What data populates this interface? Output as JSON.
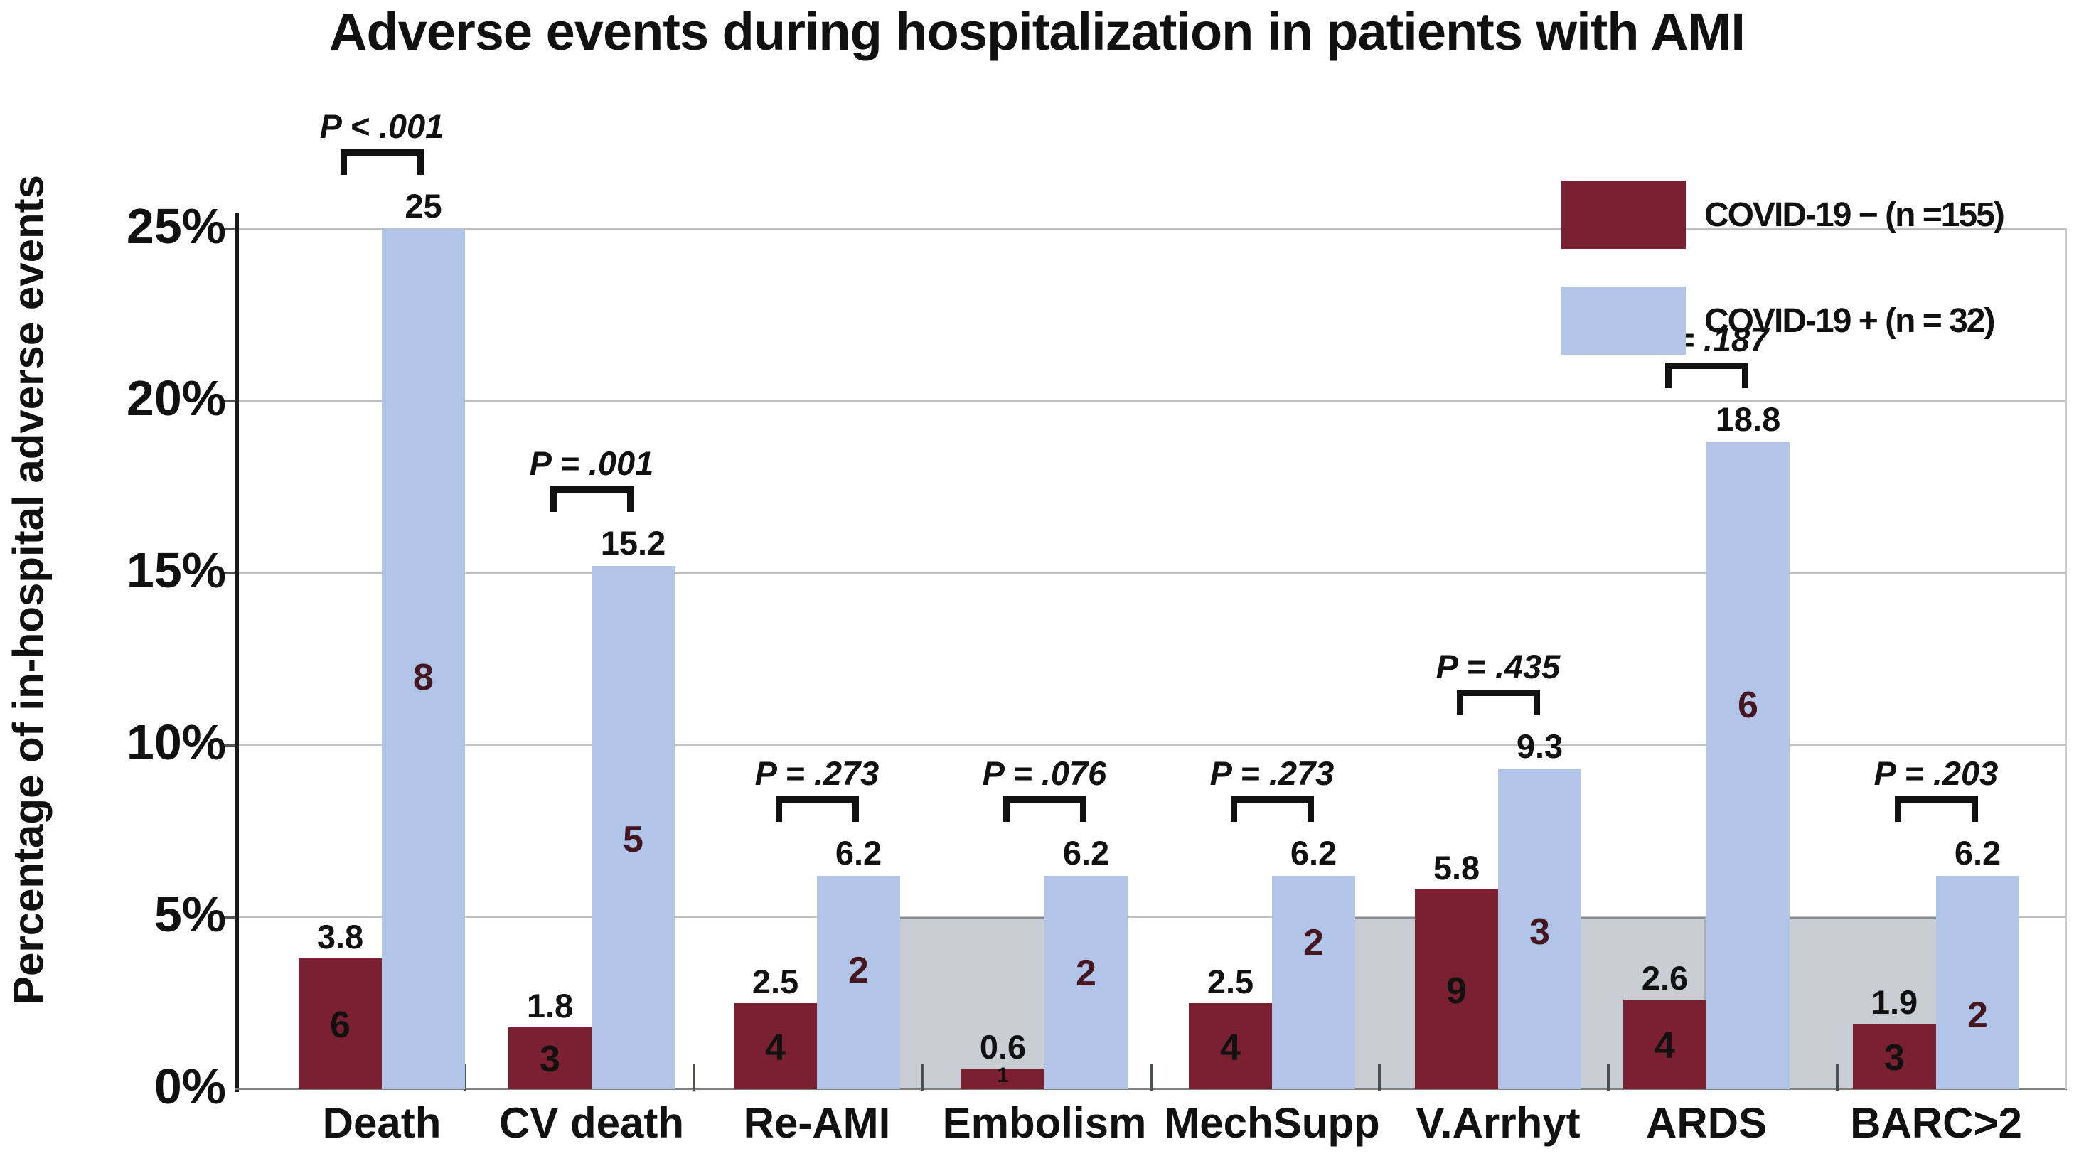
{
  "title": "Adverse events during hospitalization in patients with AMI",
  "y_axis": {
    "label": "Percentage of in-hospital adverse events",
    "ticks": [
      "0%",
      "5%",
      "10%",
      "15%",
      "20%",
      "25%"
    ]
  },
  "legend": [
    {
      "label": "COVID-19 − (n =155)",
      "color": "#7a2030"
    },
    {
      "label": "COVID-19 + (n = 32)",
      "color": "#b1c5e8"
    }
  ],
  "chart_data": {
    "type": "bar",
    "title": "Adverse events during hospitalization in patients with AMI",
    "xlabel": "",
    "ylabel": "Percentage of in-hospital adverse events",
    "ylim": [
      0,
      25
    ],
    "ytick_values": [
      0,
      5,
      10,
      15,
      20,
      25
    ],
    "ytick_labels": [
      "0%",
      "5%",
      "10%",
      "15%",
      "20%",
      "25%"
    ],
    "grid": true,
    "legend_position": "top-right",
    "categories": [
      "Death",
      "CV death",
      "Re-AMI",
      "Embolism",
      "MechSupp",
      "V.Arrhyt",
      "ARDS",
      "BARC>2"
    ],
    "series": [
      {
        "name": "COVID-19 − (n =155)",
        "color": "#7a2030",
        "values": [
          3.8,
          1.8,
          2.5,
          0.6,
          2.5,
          5.8,
          2.6,
          1.9
        ],
        "counts": [
          6,
          3,
          4,
          1,
          4,
          9,
          4,
          3
        ]
      },
      {
        "name": "COVID-19 + (n = 32)",
        "color": "#b1c5e8",
        "values": [
          25,
          15.2,
          6.2,
          6.2,
          6.2,
          9.3,
          18.8,
          6.2
        ],
        "counts": [
          8,
          5,
          2,
          2,
          2,
          3,
          6,
          2
        ]
      }
    ],
    "p_values": [
      "P < .001",
      "P = .001",
      "P = .273",
      "P = .076",
      "P = .273",
      "P = .435",
      "P = .187",
      "P = .203"
    ],
    "shaded_groups": [
      "Embolism",
      "V.Arrhyt",
      "ARDS",
      "BARC>2"
    ],
    "shaded_band_height_pct": 5
  }
}
